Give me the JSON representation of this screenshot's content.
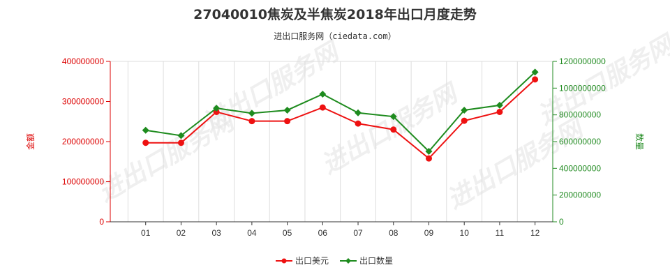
{
  "chart_data": {
    "type": "line",
    "title": "27040010焦炭及半焦炭2018年出口月度走势",
    "subtitle": "进出口服务网（ciedata.com）",
    "categories": [
      "01",
      "02",
      "03",
      "04",
      "05",
      "06",
      "07",
      "08",
      "09",
      "10",
      "11",
      "12"
    ],
    "y_left": {
      "label": "金额",
      "ylim": [
        0,
        400000000
      ],
      "ticks": [
        "0",
        "100000000",
        "200000000",
        "300000000",
        "400000000"
      ],
      "tick_values": [
        0,
        100000000,
        200000000,
        300000000,
        400000000
      ],
      "color": "#dd0000"
    },
    "y_right": {
      "label": "数量",
      "ylim": [
        0,
        1200000000
      ],
      "ticks": [
        "0",
        "200000000",
        "400000000",
        "600000000",
        "800000000",
        "1000000000",
        "1200000000"
      ],
      "tick_values": [
        0,
        200000000,
        400000000,
        600000000,
        800000000,
        1000000000,
        1200000000
      ],
      "color": "#228b22"
    },
    "series": [
      {
        "name": "出口美元",
        "axis": "left",
        "color": "#ee1111",
        "marker": "circle",
        "values": [
          197000000,
          197000000,
          274000000,
          251000000,
          251000000,
          285000000,
          245000000,
          230000000,
          158000000,
          252000000,
          274000000,
          355000000
        ]
      },
      {
        "name": "出口数量",
        "axis": "right",
        "color": "#1e8b1e",
        "marker": "diamond",
        "values": [
          685000000,
          645000000,
          850000000,
          812000000,
          835000000,
          955000000,
          815000000,
          787000000,
          527000000,
          835000000,
          872000000,
          1120000000
        ]
      }
    ],
    "grid": "vertical",
    "legend_position": "bottom-center"
  },
  "watermark_text": "进出口服务网"
}
